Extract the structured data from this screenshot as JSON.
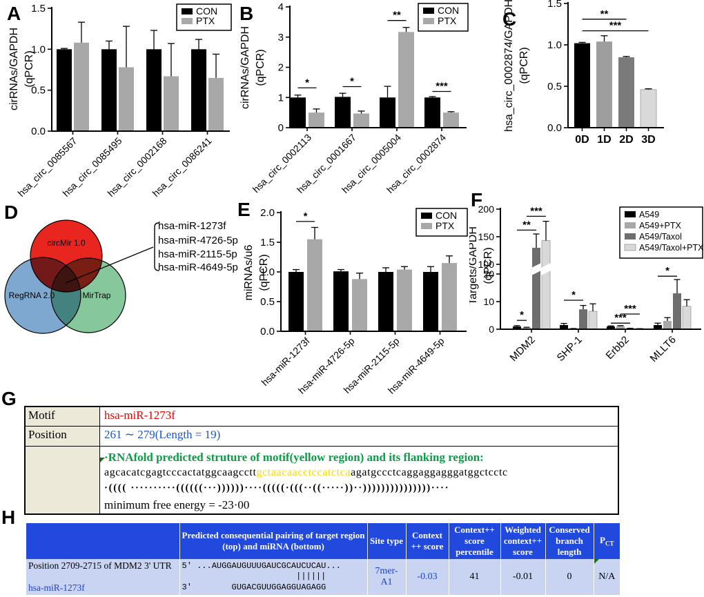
{
  "panel_labels": {
    "A": "A",
    "B": "B",
    "C": "C",
    "D": "D",
    "E": "E",
    "F": "F",
    "G": "G",
    "H": "H"
  },
  "colors": {
    "bar_black": "#000000",
    "bar_gray": "#a8a8a8",
    "bar_darkgray": "#6e6e6e",
    "bar_lightgray": "#d9d9d9",
    "h_header_bg": "#2149dd",
    "h_row_bg": "#c9d4f3",
    "value_blue": "#1d43cf",
    "motif_red": "#e80000",
    "position_blue": "#1f56c8",
    "rnafold_green": "#0f9b48",
    "seq_yellow": "#ffd800",
    "comment_green": "#157a15"
  },
  "chart_data": [
    {
      "id": "A",
      "type": "bar",
      "title": "",
      "xlabel": "",
      "ylabel": [
        "cirRNAs/GAPDH",
        "(qPCR)"
      ],
      "categories": [
        "hsa_circ_0085567",
        "hsa_circ_0085495",
        "hsa_circ_0002168",
        "hsa_circ_0086241"
      ],
      "series": [
        {
          "name": "CON",
          "color": "#000000",
          "values": [
            1.0,
            1.0,
            1.0,
            1.0
          ],
          "errors": [
            0.01,
            0.1,
            0.23,
            0.12
          ]
        },
        {
          "name": "PTX",
          "color": "#a8a8a8",
          "values": [
            1.08,
            0.78,
            0.67,
            0.65
          ],
          "errors": [
            0.25,
            0.5,
            0.4,
            0.29
          ]
        }
      ],
      "ylim": [
        0,
        1.5
      ],
      "yticks": [
        0,
        0.5,
        1,
        1.5
      ],
      "ytick_labels": [
        "0.0",
        "0.5",
        "1.0",
        "1.5"
      ],
      "legend": true,
      "grid": false,
      "sig": []
    },
    {
      "id": "B",
      "type": "bar",
      "title": "",
      "xlabel": "",
      "ylabel": [
        "cirRNAs/GAPDH",
        "(qPCR)"
      ],
      "categories": [
        "hsa_circ_0002113",
        "hsa_circ_0001667",
        "hsa_circ_0005004",
        "hsa_circ_0002874"
      ],
      "series": [
        {
          "name": "CON",
          "color": "#000000",
          "values": [
            1.0,
            1.02,
            1.0,
            1.0
          ],
          "errors": [
            0.08,
            0.12,
            0.37,
            0.03
          ]
        },
        {
          "name": "PTX",
          "color": "#a8a8a8",
          "values": [
            0.5,
            0.47,
            3.17,
            0.5
          ],
          "errors": [
            0.12,
            0.08,
            0.15,
            0.03
          ]
        }
      ],
      "ylim": [
        0,
        4
      ],
      "yticks": [
        0,
        1,
        2,
        3,
        4
      ],
      "ytick_labels": [
        "0",
        "1",
        "2",
        "3",
        "4"
      ],
      "legend": true,
      "grid": false,
      "sig": [
        {
          "cat": 0,
          "between": [
            0,
            1
          ],
          "y": 1.32,
          "label": "*"
        },
        {
          "cat": 1,
          "between": [
            0,
            1
          ],
          "y": 1.36,
          "label": "*"
        },
        {
          "cat": 2,
          "between": [
            0,
            1
          ],
          "y": 3.55,
          "label": "**"
        },
        {
          "cat": 3,
          "between": [
            0,
            1
          ],
          "y": 1.2,
          "label": "***"
        }
      ]
    },
    {
      "id": "C",
      "type": "bar",
      "title": "",
      "xlabel": "",
      "ylabel": [
        "hsa_circ_0002874/GAPDH",
        "(qPCR)"
      ],
      "categories": [
        "0D",
        "1D",
        "2D",
        "3D"
      ],
      "series": [
        {
          "name": "",
          "values": [
            1.02,
            1.04,
            0.85,
            0.46
          ],
          "errors": [
            0.01,
            0.07,
            0.01,
            0.01
          ],
          "colors": [
            "#000000",
            "#9e9e9e",
            "#7a7a7a",
            "#d9d9d9"
          ]
        }
      ],
      "ylim": [
        0,
        1.5
      ],
      "yticks": [
        0,
        0.5,
        1,
        1.5
      ],
      "ytick_labels": [
        "0.0",
        "0.5",
        "1.0",
        "1.5"
      ],
      "legend": false,
      "grid": false,
      "sig": [
        {
          "cats": [
            0,
            2
          ],
          "y": 1.31,
          "label": "**"
        },
        {
          "cats": [
            0,
            3
          ],
          "y": 1.17,
          "label": "***"
        }
      ]
    },
    {
      "id": "E",
      "type": "bar",
      "title": "",
      "xlabel": "",
      "ylabel": [
        "miRNAs/u6",
        "(qPCR)"
      ],
      "categories": [
        "hsa-miR-1273f",
        "hsa-miR-4726-5p",
        "hsa-miR-2115-5p",
        "hsa-miR-4649-5p"
      ],
      "series": [
        {
          "name": "CON",
          "color": "#000000",
          "values": [
            1.0,
            1.01,
            1.0,
            1.0
          ],
          "errors": [
            0.04,
            0.03,
            0.07,
            0.09
          ]
        },
        {
          "name": "PTX",
          "color": "#a8a8a8",
          "values": [
            1.55,
            0.88,
            1.04,
            1.15
          ],
          "errors": [
            0.2,
            0.1,
            0.05,
            0.12
          ]
        }
      ],
      "ylim": [
        0,
        2
      ],
      "yticks": [
        0,
        0.5,
        1,
        1.5,
        2
      ],
      "ytick_labels": [
        "0.0",
        "0.5",
        "1.0",
        "1.5",
        "2.0"
      ],
      "legend": true,
      "grid": false,
      "sig": [
        {
          "cat": 0,
          "between": [
            0,
            1
          ],
          "y": 1.85,
          "label": "*"
        }
      ]
    },
    {
      "id": "F",
      "type": "bar",
      "title": "",
      "xlabel": "",
      "ylabel": [
        "Targets/GAPDH",
        "(qPCR)"
      ],
      "categories": [
        "MDM2",
        "SHP-1",
        "Erbb2",
        "MLLT6"
      ],
      "series": [
        {
          "name": "A549",
          "color": "#000000",
          "values": [
            1.0,
            1.5,
            1.0,
            1.5
          ],
          "errors": [
            0.3,
            0.6,
            0.2,
            0.7
          ]
        },
        {
          "name": "A549+PTX",
          "color": "#a8a8a8",
          "values": [
            0.5,
            0.15,
            1.1,
            3.0
          ],
          "errors": [
            0.2,
            0.1,
            0.2,
            1.2
          ]
        },
        {
          "name": "A549/Taxol",
          "color": "#6e6e6e",
          "values": [
            130,
            7.2,
            0.25,
            13
          ],
          "errors": [
            25,
            1.4,
            0.1,
            5
          ]
        },
        {
          "name": "A549/Taxol+PTX",
          "color": "#d9d9d9",
          "values": [
            143,
            6.5,
            0.12,
            8.3
          ],
          "errors": [
            35,
            2.7,
            0.08,
            2.4
          ]
        }
      ],
      "ylim": [
        0,
        200
      ],
      "axis_break": {
        "lower": [
          0,
          20
        ],
        "upper": [
          100,
          200
        ],
        "lower_ticks": [
          0,
          10,
          20
        ],
        "upper_ticks": [
          100,
          150,
          200
        ]
      },
      "legend": true,
      "grid": false,
      "sig": [
        {
          "cat": 0,
          "between": [
            0,
            1
          ],
          "y": 3.2,
          "label": "*"
        },
        {
          "cat": 0,
          "between": [
            0,
            2
          ],
          "y": 162,
          "label": "**"
        },
        {
          "cat": 0,
          "between": [
            1,
            3
          ],
          "y": 187,
          "label": "***"
        },
        {
          "cat": 1,
          "between": [
            0,
            2
          ],
          "y": 10.5,
          "label": "*"
        },
        {
          "cat": 2,
          "between": [
            0,
            2
          ],
          "y": 2.2,
          "label": "***"
        },
        {
          "cat": 2,
          "between": [
            1,
            3
          ],
          "y": 5.5,
          "label": "***"
        },
        {
          "cat": 3,
          "between": [
            0,
            2
          ],
          "y": 19.2,
          "label": "*"
        }
      ]
    }
  ],
  "venn": {
    "sets": [
      {
        "label": "circMir 1.0",
        "color": "#e8251f"
      },
      {
        "label": "RegRNA 2.0",
        "color": "#7fa8d0"
      },
      {
        "label": "MirTrap",
        "color": "#86c79c"
      }
    ],
    "intersection": [
      "hsa-miR-1273f",
      "hsa-miR-4726-5p",
      "hsa-miR-2115-5p",
      "hsa-miR-4649-5p"
    ]
  },
  "g_table": {
    "motif_label": "Motif",
    "motif_value": "hsa-miR-1273f",
    "position_label": "Position",
    "position_value": "261 ∼ 279(Length = 19)",
    "structure_title": "·RNAfold predicted struture of motif(yellow region) and its flanking region:",
    "seq_pre": "agcacatcgagtcccactatggcaagcctt",
    "seq_motif": "gctaacaacctccatctca",
    "seq_post": "agatgccctcaggaggagggatggctcctc",
    "dot_bracket": "·(((( ··········((((((···))))))····(((((·(((··((·····))··)))))))))))))))····",
    "mfe": "minimum free energy = -23·00"
  },
  "h_table": {
    "headers": {
      "pairing": "Predicted consequential pairing of target region (top) and miRNA (bottom)",
      "site_type": "Site type",
      "context_score": "Context ++ score",
      "percentile": "Context++ score percentile",
      "weighted": "Weighted context++ score",
      "conserved": "Conserved branch length",
      "pct_base": "P",
      "pct_sub": "CT"
    },
    "row": {
      "position": "Position 2709-2715 of MDM2 3' UTR",
      "mirna": "hsa-miR-1273f",
      "target_line": "5' ...AUGGAUGUUUGAUCGCAUCUCAU...",
      "pairs_line": "                       ||||||",
      "mirna_line": "3'        GUGACGUUGGAGGUAGAGG",
      "site_type": "7mer-A1",
      "context_score": "-0.03",
      "percentile": "41",
      "weighted": "-0.01",
      "conserved": "0",
      "pct": "N/A"
    }
  }
}
